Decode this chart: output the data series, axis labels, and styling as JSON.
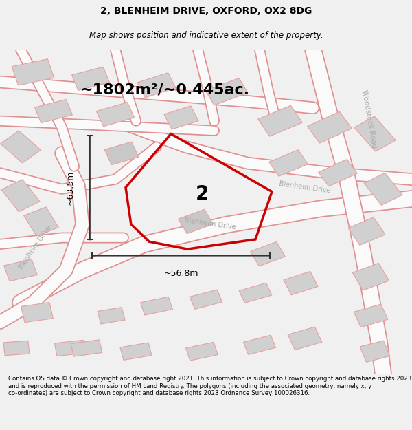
{
  "title_line1": "2, BLENHEIM DRIVE, OXFORD, OX2 8DG",
  "title_line2": "Map shows position and indicative extent of the property.",
  "area_text": "~1802m²/~0.445ac.",
  "property_number": "2",
  "dim_width": "~56.8m",
  "dim_height": "~63.5m",
  "footer_text": "Contains OS data © Crown copyright and database right 2021. This information is subject to Crown copyright and database rights 2023 and is reproduced with the permission of HM Land Registry. The polygons (including the associated geometry, namely x, y co-ordinates) are subject to Crown copyright and database rights 2023 Ordnance Survey 100026316.",
  "bg_color": "#f0f0f0",
  "map_bg": "#ffffff",
  "road_color": "#fafafa",
  "road_edge": "#e09090",
  "bld_fc": "#d0d0d0",
  "bld_ec": "#e8a0a0",
  "prop_edge": "#cc0000",
  "dim_color": "#333333",
  "road_lbl_color": "#aaaaaa",
  "title_fs": 10,
  "subtitle_fs": 8.5,
  "area_fs": 16,
  "propnum_fs": 20,
  "dim_fs": 9,
  "road_lbl_fs": 7,
  "footer_fs": 6.2
}
